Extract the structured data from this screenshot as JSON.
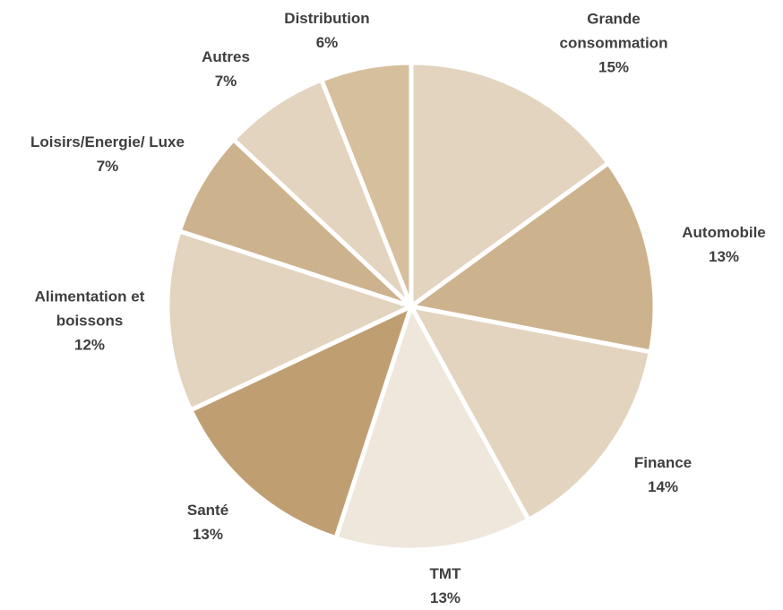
{
  "chart_data": {
    "type": "pie",
    "categories": [
      "Grande consommation",
      "Automobile",
      "Finance",
      "TMT",
      "Santé",
      "Alimentation et boissons",
      "Loisirs/Energie/ Luxe",
      "Autres",
      "Distribution"
    ],
    "values": [
      15,
      13,
      14,
      13,
      13,
      12,
      7,
      7,
      6
    ],
    "value_labels": [
      "15%",
      "13%",
      "14%",
      "13%",
      "13%",
      "12%",
      "7%",
      "7%",
      "6%"
    ],
    "colors": [
      "#e3d4bf",
      "#cdb28e",
      "#e3d4bf",
      "#efe7dc",
      "#bf9f72",
      "#e3d4bf",
      "#cdb28e",
      "#e3d4bf",
      "#d6bf9d"
    ]
  }
}
